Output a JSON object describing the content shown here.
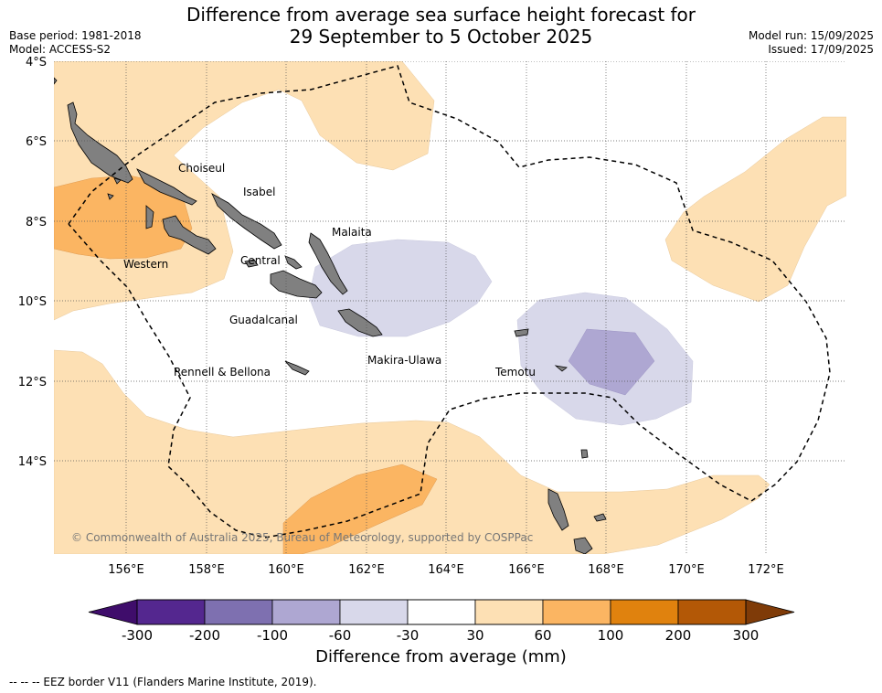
{
  "title_line1": "Difference from average sea surface height forecast for",
  "title_line2": "29 September to 5 October 2025",
  "meta_left": [
    "Base period: 1981-2018",
    "Model: ACCESS-S2"
  ],
  "meta_right": [
    "Model run: 15/09/2025",
    "Issued: 17/09/2025"
  ],
  "lat_labels": [
    "4°S",
    "6°S",
    "8°S",
    "10°S",
    "12°S",
    "14°S"
  ],
  "lon_labels": [
    "156°E",
    "158°E",
    "160°E",
    "162°E",
    "164°E",
    "166°E",
    "168°E",
    "170°E",
    "172°E"
  ],
  "places": [
    "Choiseul",
    "Isabel",
    "Malaita",
    "Central",
    "Western",
    "Guadalcanal",
    "Makira-Ulawa",
    "Temotu",
    "Rennell & Bellona"
  ],
  "copyright": "© Commonwealth of Australia 2025, Bureau of Meteorology, supported by COSPPac",
  "colorbar": {
    "ticks": [
      "-300",
      "-200",
      "-100",
      "-60",
      "-30",
      "30",
      "60",
      "100",
      "200",
      "300"
    ],
    "colors": [
      "#3f0d6b",
      "#54278f",
      "#7e70b0",
      "#aea7d2",
      "#d8d8ea",
      "#ffffff",
      "#fde0b4",
      "#fbb562",
      "#e0820e",
      "#b35806",
      "#7f3b08"
    ],
    "label": "Difference from average (mm)"
  },
  "footer": "--  --  -- EEZ border V11 (Flanders Marine Institute, 2019)."
}
